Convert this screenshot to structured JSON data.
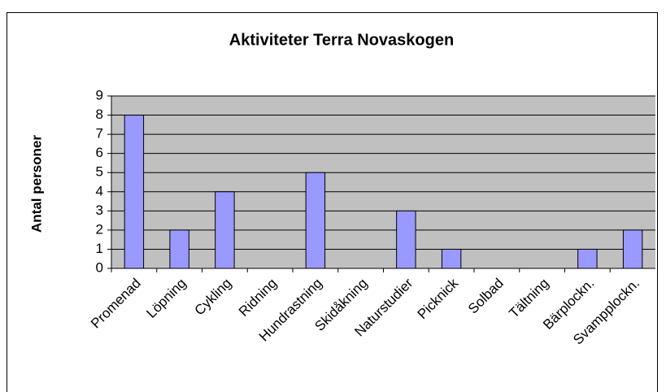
{
  "chart_data": {
    "type": "bar",
    "title": "Aktiviteter Terra Novaskogen",
    "y_label": "Antal personer",
    "categories": [
      "Promenad",
      "Löpning",
      "Cykling",
      "Ridning",
      "Hundrastning",
      "Skidåkning",
      "Naturstudier",
      "Picknick",
      "Solbad",
      "Tältning",
      "Bärplockn.",
      "Svampplockn."
    ],
    "values": [
      8,
      2,
      4,
      0,
      5,
      0,
      3,
      1,
      0,
      0,
      1,
      2
    ],
    "color": "#9999ff",
    "ylim": [
      0,
      9
    ],
    "yticks": [
      0,
      1,
      2,
      3,
      4,
      5,
      6,
      7,
      8,
      9
    ],
    "grid": true
  }
}
